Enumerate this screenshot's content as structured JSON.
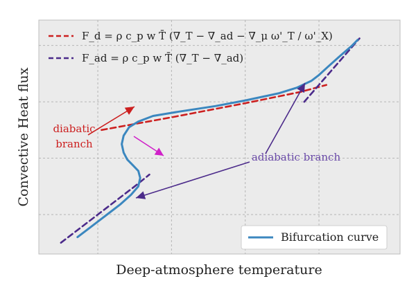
{
  "chart_data": {
    "type": "line",
    "title": "",
    "xlabel": "Deep-atmosphere temperature",
    "ylabel": "Convective Heat flux",
    "grid": true,
    "ticks_labeled": false,
    "legend_top": {
      "placement": "top-left",
      "entries": [
        {
          "name": "F_d = ρ c_p w T̄ (∇_T − ∇_ad − ∇_μ ω'_T / ω'_X)",
          "color": "#cc1f1f",
          "style": "dashed"
        },
        {
          "name": "F_ad = ρ c_p w T̄ (∇_T − ∇_ad)",
          "color": "#4b2a8a",
          "style": "dashed"
        }
      ]
    },
    "legend_bottom": {
      "placement": "lower-right",
      "entries": [
        {
          "name": "Bifurcation curve",
          "color": "#3b87bf",
          "style": "solid"
        }
      ]
    },
    "series": [
      {
        "name": "Bifurcation curve",
        "color": "#3b87bf",
        "x": [
          0.45,
          0.7,
          1.0,
          1.3,
          1.6,
          1.9,
          2.1,
          2.15,
          2.1,
          1.95,
          1.8,
          1.7,
          1.65,
          1.7,
          1.85,
          2.1,
          2.5,
          3.2,
          4.2,
          5.0,
          5.9,
          6.4,
          6.8,
          7.0,
          7.25,
          7.55,
          7.9,
          8.05
        ],
        "y": [
          0.2,
          0.45,
          0.75,
          1.05,
          1.35,
          1.7,
          2.0,
          2.3,
          2.55,
          2.75,
          2.95,
          3.2,
          3.5,
          3.8,
          4.1,
          4.3,
          4.5,
          4.65,
          4.85,
          5.05,
          5.3,
          5.5,
          5.75,
          5.95,
          6.25,
          6.6,
          7.0,
          7.2
        ]
      },
      {
        "name": "F_d",
        "color": "#cc1f1f",
        "style": "dashed",
        "x": [
          1.1,
          3.0,
          5.0,
          6.5,
          7.2
        ],
        "y": [
          4.0,
          4.45,
          4.95,
          5.35,
          5.6
        ]
      },
      {
        "name": "F_ad lower",
        "color": "#4b2a8a",
        "style": "dashed",
        "x": [
          0.0,
          1.0,
          2.0,
          2.4
        ],
        "y": [
          0.0,
          1.0,
          2.0,
          2.42
        ]
      },
      {
        "name": "F_ad upper",
        "color": "#4b2a8a",
        "style": "dashed",
        "x": [
          6.6,
          7.4,
          8.1
        ],
        "y": [
          5.0,
          6.2,
          7.25
        ]
      }
    ],
    "annotations": [
      {
        "text_lines": [
          "diabatic",
          "branch"
        ],
        "color": "#cc1f1f",
        "arrow_color": "#cc1f1f"
      },
      {
        "text_lines": [
          "adiabatic branch"
        ],
        "color": "#6a4aa8",
        "arrow_color": "#4b2a8a"
      }
    ],
    "magenta_arrow_color": "#d020c8",
    "xlim": [
      -0.6,
      9.2
    ],
    "ylim": [
      -0.4,
      7.9
    ]
  }
}
